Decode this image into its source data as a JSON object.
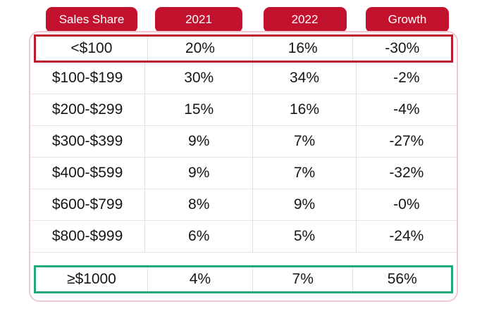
{
  "chart_data": {
    "type": "table",
    "columns": [
      "Sales Share",
      "2021",
      "2022",
      "Growth"
    ],
    "rows": [
      [
        "<$100",
        "20%",
        "16%",
        "-30%"
      ],
      [
        "$100-$199",
        "30%",
        "34%",
        "-2%"
      ],
      [
        "$200-$299",
        "15%",
        "16%",
        "-4%"
      ],
      [
        "$300-$399",
        "9%",
        "7%",
        "-27%"
      ],
      [
        "$400-$599",
        "9%",
        "7%",
        "-32%"
      ],
      [
        "$600-$799",
        "8%",
        "9%",
        "-0%"
      ],
      [
        "$800-$999",
        "6%",
        "5%",
        "-24%"
      ],
      [
        "≥$1000",
        "4%",
        "7%",
        "56%"
      ]
    ],
    "row_highlights": [
      "red",
      null,
      null,
      null,
      null,
      null,
      null,
      "green"
    ],
    "layout_hints": {
      "header_style": "red rounded pills above table",
      "grid": "light vertical and horizontal separators",
      "container": "white card with light pink rounded border"
    }
  },
  "colors": {
    "header_red": "#c3122e",
    "highlight_red": "#bb1b2e",
    "highlight_green": "#1fa97c",
    "container_border": "#f0c9ce",
    "v_sep": "#e5dede",
    "h_sep": "#eae2e2",
    "text": "#161616"
  }
}
